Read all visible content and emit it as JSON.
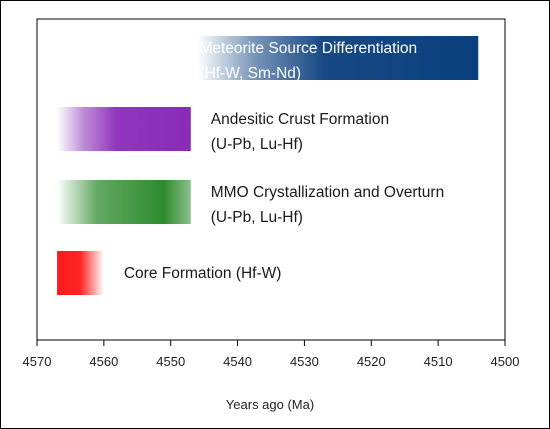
{
  "chart_data": {
    "type": "bar",
    "orientation": "horizontal-range",
    "xlabel": "Years ago (Ma)",
    "xlim": [
      4570,
      4500
    ],
    "x_reversed": true,
    "x_ticks": [
      4570,
      4560,
      4550,
      4540,
      4530,
      4520,
      4510,
      4500
    ],
    "grid": false,
    "bars": [
      {
        "id": "meteorite",
        "label_line1": "Meteorite Source Differentiation",
        "label_line2": "(Hf-W, Sm-Nd)",
        "start": 4546,
        "end": 4504,
        "color": "#0b3f7e",
        "fade": "left"
      },
      {
        "id": "andesitic",
        "label_line1": "Andesitic Crust Formation",
        "label_line2": "(U-Pb, Lu-Hf)",
        "start": 4567,
        "end": 4547,
        "color": "#8a2bb8",
        "fade": "left"
      },
      {
        "id": "mmo",
        "label_line1": "MMO Crystallization and Overturn",
        "label_line2": "(U-Pb, Lu-Hf)",
        "start": 4567,
        "end": 4547,
        "color": "#2e8b2e",
        "fade": "both"
      },
      {
        "id": "core",
        "label_line1": "Core Formation (Hf-W)",
        "label_line2": "",
        "start": 4567,
        "end": 4560,
        "color": "#ff1a1a",
        "fade": "right"
      }
    ]
  }
}
